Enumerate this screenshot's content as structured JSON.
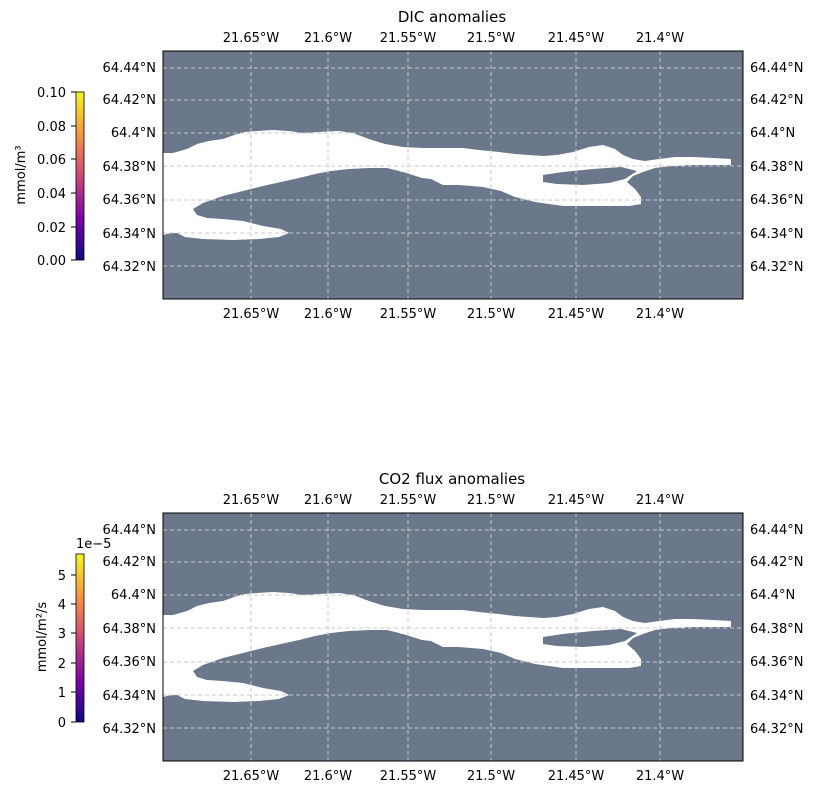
{
  "panels": [
    {
      "title": "DIC anomalies",
      "lon_ticks": [
        "21.65°W",
        "21.6°W",
        "21.55°W",
        "21.5°W",
        "21.45°W",
        "21.4°W"
      ],
      "lat_ticks": [
        "64.44°N",
        "64.42°N",
        "64.4°N",
        "64.38°N",
        "64.36°N",
        "64.34°N",
        "64.32°N"
      ],
      "colorbar": {
        "label": "mmol/m³",
        "ticks": [
          "0.10",
          "0.08",
          "0.06",
          "0.04",
          "0.02",
          "0.00"
        ],
        "offset_text": ""
      }
    },
    {
      "title": "CO2 flux anomalies",
      "lon_ticks": [
        "21.65°W",
        "21.6°W",
        "21.55°W",
        "21.5°W",
        "21.45°W",
        "21.4°W"
      ],
      "lat_ticks": [
        "64.44°N",
        "64.42°N",
        "64.4°N",
        "64.38°N",
        "64.36°N",
        "64.34°N",
        "64.32°N"
      ],
      "colorbar": {
        "label": "mmol/m²/s",
        "ticks": [
          "5",
          "4",
          "3",
          "2",
          "1",
          "0"
        ],
        "offset_text": "1e−5"
      }
    }
  ],
  "colors": {
    "ocean": "#6b778a",
    "land": "#ffffff",
    "grid": "#c8c8c8",
    "colormap": [
      "#0d0887",
      "#7e03a8",
      "#cc4778",
      "#f89540",
      "#f0f921"
    ]
  }
}
